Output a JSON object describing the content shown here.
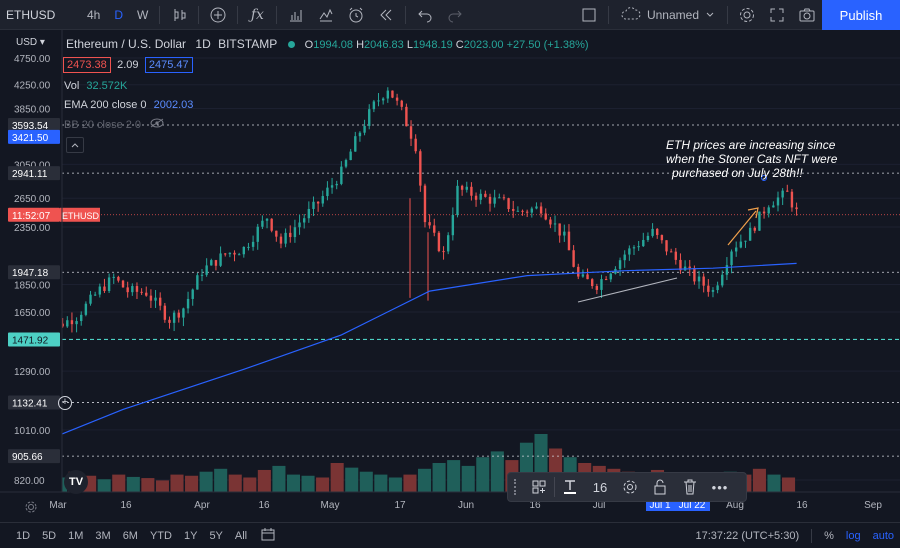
{
  "toolbar": {
    "symbol": "ETHUSD",
    "intervals": [
      "4h",
      "D",
      "W"
    ],
    "active_interval": "D",
    "layout_name": "Unnamed",
    "publish_label": "Publish"
  },
  "legend": {
    "pair": "Ethereum / U.S. Dollar",
    "interval": "1D",
    "exchange": "BITSTAMP",
    "ohlc": {
      "o_label": "O",
      "o": "1994.08",
      "h_label": "H",
      "h": "2046.83",
      "l_label": "L",
      "l": "1948.19",
      "c_label": "C",
      "c": "2023.00",
      "change": "+27.50 (+1.38%)"
    },
    "bid": "2473.38",
    "spread": "2.09",
    "ask": "2475.47",
    "vol_label": "Vol",
    "vol_value": "32.572K",
    "ema_label": "EMA 200 close 0",
    "ema_value": "2002.03",
    "bb_label": "BB 20 close 2 0"
  },
  "price_axis": {
    "currency": "USD",
    "ticks": [
      "4750.00",
      "4250.00",
      "3850.00",
      "3050.00",
      "2650.00",
      "2350.00",
      "1850.00",
      "1650.00",
      "1290.00",
      "1010.00",
      "820.00"
    ],
    "tick_values": [
      4750,
      4250,
      3850,
      3050,
      2650,
      2350,
      1850,
      1650,
      1290,
      1010,
      820
    ],
    "tags": [
      {
        "label": "3593.54",
        "kind": "dark",
        "value": 3593.54
      },
      {
        "label": "3421.50",
        "kind": "blue",
        "value": 3421.5
      },
      {
        "label": "2941.11",
        "kind": "dark",
        "value": 2941.11
      },
      {
        "label": "11:52:07",
        "kind": "red",
        "value": 2473.38
      },
      {
        "label": "1947.18",
        "kind": "dark",
        "value": 1947.18
      },
      {
        "label": "1471.92",
        "kind": "teal",
        "value": 1471.92
      },
      {
        "label": "1132.41",
        "kind": "dark",
        "value": 1132.41
      },
      {
        "label": "905.66",
        "kind": "dark",
        "value": 905.66
      }
    ],
    "last_price_label": "ETHUSD"
  },
  "time_axis": [
    "Mar",
    "16",
    "Apr",
    "16",
    "May",
    "17",
    "Jun",
    "16",
    "Jul",
    "Jul 1",
    "Jul 22",
    "Aug",
    "16",
    "Sep"
  ],
  "annotation": [
    "ETH prices are increasing since",
    "when the Stoner Cats NFT were",
    "purchased on July 28th!!"
  ],
  "drawing_toolbar": {
    "font_size": "16"
  },
  "bottom": {
    "ranges": [
      "1D",
      "5D",
      "1M",
      "3M",
      "6M",
      "YTD",
      "1Y",
      "5Y",
      "All"
    ],
    "clock": "17:37:22 (UTC+5:30)",
    "percent_label": "%",
    "log_label": "log",
    "auto_label": "auto"
  },
  "colors": {
    "up": "#26a69a",
    "down": "#ef5350",
    "ema": "#2962ff",
    "accent": "#2962ff",
    "background": "#131722"
  },
  "chart_data": {
    "type": "candlestick",
    "y_scale": "log",
    "close_path": [
      [
        "2021-02-25",
        1480
      ],
      [
        "2021-03-01",
        1560
      ],
      [
        "2021-03-05",
        1620
      ],
      [
        "2021-03-10",
        1810
      ],
      [
        "2021-03-13",
        1900
      ],
      [
        "2021-03-16",
        1800
      ],
      [
        "2021-03-20",
        1790
      ],
      [
        "2021-03-25",
        1600
      ],
      [
        "2021-03-28",
        1680
      ],
      [
        "2021-04-01",
        1960
      ],
      [
        "2021-04-06",
        2100
      ],
      [
        "2021-04-10",
        2150
      ],
      [
        "2021-04-15",
        2450
      ],
      [
        "2021-04-18",
        2200
      ],
      [
        "2021-04-22",
        2400
      ],
      [
        "2021-04-26",
        2600
      ],
      [
        "2021-05-01",
        2950
      ],
      [
        "2021-05-05",
        3500
      ],
      [
        "2021-05-08",
        3900
      ],
      [
        "2021-05-11",
        4200
      ],
      [
        "2021-05-14",
        3800
      ],
      [
        "2021-05-17",
        3300
      ],
      [
        "2021-05-19",
        2400
      ],
      [
        "2021-05-23",
        2100
      ],
      [
        "2021-05-26",
        2750
      ],
      [
        "2021-06-01",
        2650
      ],
      [
        "2021-06-05",
        2600
      ],
      [
        "2021-06-08",
        2500
      ],
      [
        "2021-06-13",
        2550
      ],
      [
        "2021-06-18",
        2250
      ],
      [
        "2021-06-21",
        1900
      ],
      [
        "2021-06-25",
        1850
      ],
      [
        "2021-07-01",
        2100
      ],
      [
        "2021-07-07",
        2300
      ],
      [
        "2021-07-12",
        2050
      ],
      [
        "2021-07-16",
        1900
      ],
      [
        "2021-07-20",
        1800
      ],
      [
        "2021-07-24",
        2150
      ],
      [
        "2021-07-28",
        2300
      ],
      [
        "2021-08-01",
        2600
      ],
      [
        "2021-08-05",
        2700
      ],
      [
        "2021-08-07",
        2500
      ]
    ],
    "ema200": [
      [
        "2021-02-20",
        920
      ],
      [
        "2021-03-15",
        1100
      ],
      [
        "2021-04-10",
        1300
      ],
      [
        "2021-05-01",
        1500
      ],
      [
        "2021-05-20",
        1800
      ],
      [
        "2021-06-10",
        1920
      ],
      [
        "2021-07-01",
        1960
      ],
      [
        "2021-07-20",
        1980
      ],
      [
        "2021-08-07",
        2020
      ]
    ],
    "volume_relative": [
      0.3,
      0.25,
      0.35,
      0.28,
      0.22,
      0.3,
      0.26,
      0.24,
      0.2,
      0.3,
      0.28,
      0.35,
      0.4,
      0.3,
      0.25,
      0.38,
      0.45,
      0.3,
      0.28,
      0.25,
      0.5,
      0.42,
      0.35,
      0.3,
      0.25,
      0.3,
      0.4,
      0.5,
      0.55,
      0.45,
      0.6,
      0.7,
      0.55,
      0.85,
      1.0,
      0.75,
      0.6,
      0.5,
      0.45,
      0.4,
      0.35,
      0.3,
      0.38,
      0.32,
      0.28,
      0.3,
      0.25,
      0.35,
      0.3,
      0.4,
      0.3,
      0.25
    ]
  }
}
